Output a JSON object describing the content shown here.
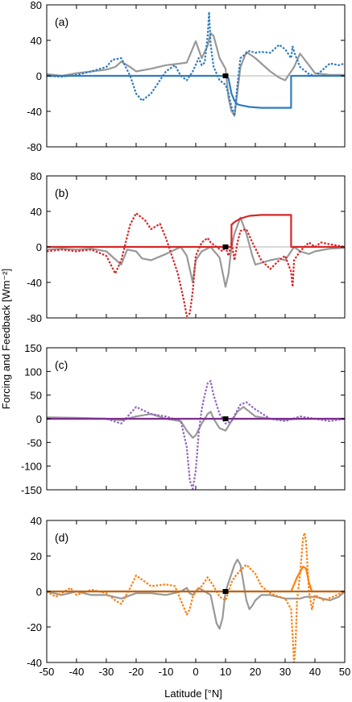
{
  "figure": {
    "ylabel": "Forcing and Feedback [Wm⁻²]",
    "xlabel": "Latitude [°N]",
    "x_ticks": [
      -50,
      -40,
      -30,
      -20,
      -10,
      0,
      10,
      20,
      30,
      40,
      50
    ]
  },
  "chart_data": [
    {
      "type": "line",
      "panel_label": "(a)",
      "xlim": [
        -50,
        50
      ],
      "ylim": [
        -80,
        80
      ],
      "y_ticks": [
        -80,
        -40,
        0,
        40,
        80
      ],
      "marker": {
        "x": 10,
        "y": 0
      },
      "series": [
        {
          "style": "solid",
          "color": "#999999",
          "x": [
            -50,
            -45,
            -40,
            -35,
            -30,
            -27,
            -25,
            -22,
            -20,
            -15,
            -10,
            -5,
            -3,
            0,
            2,
            4,
            5,
            6,
            8,
            10,
            11,
            12,
            12.5,
            13,
            15,
            17,
            20,
            25,
            28,
            30,
            33,
            35,
            38,
            40,
            45,
            50
          ],
          "y": [
            2,
            0,
            3,
            5,
            7,
            10,
            16,
            10,
            5,
            8,
            12,
            14,
            15,
            39,
            20,
            34,
            48,
            45,
            20,
            8,
            -25,
            -40,
            -42,
            -45,
            10,
            27,
            20,
            5,
            -2,
            -5,
            10,
            25,
            12,
            3,
            1,
            1
          ]
        },
        {
          "style": "dotted",
          "color": "#2f7cbf",
          "x": [
            -50,
            -45,
            -40,
            -35,
            -30,
            -28,
            -25,
            -22,
            -20,
            -18,
            -15,
            -12,
            -10,
            -7,
            -5,
            -3,
            -1,
            1,
            2,
            3,
            4,
            4.5,
            5,
            6,
            8,
            10,
            11,
            12,
            13,
            14,
            15,
            18,
            20,
            22,
            25,
            28,
            30,
            32,
            32.5,
            33,
            35,
            38,
            40,
            42,
            45,
            48,
            50
          ],
          "y": [
            0,
            -1,
            1,
            5,
            10,
            18,
            20,
            0,
            -20,
            -28,
            -20,
            -5,
            5,
            12,
            0,
            -5,
            5,
            20,
            12,
            15,
            45,
            72,
            35,
            10,
            -5,
            -10,
            -20,
            -35,
            -45,
            -10,
            20,
            28,
            26,
            27,
            26,
            35,
            30,
            20,
            33,
            27,
            10,
            2,
            0,
            5,
            14,
            12,
            14
          ]
        },
        {
          "style": "solid",
          "color": "#2f7cbf",
          "x": [
            -50,
            10,
            10,
            11,
            12,
            13,
            14,
            15,
            18,
            22,
            26,
            30,
            32,
            32,
            33,
            50
          ],
          "y": [
            0,
            0,
            0,
            -3,
            -20,
            -28,
            -32,
            -33,
            -35,
            -36,
            -36,
            -36,
            -36,
            0,
            0,
            0
          ]
        }
      ]
    },
    {
      "type": "line",
      "panel_label": "(b)",
      "xlim": [
        -50,
        50
      ],
      "ylim": [
        -80,
        80
      ],
      "y_ticks": [
        -80,
        -40,
        0,
        40,
        80
      ],
      "marker": {
        "x": 10,
        "y": 0
      },
      "series": [
        {
          "style": "solid",
          "color": "#999999",
          "x": [
            -50,
            -45,
            -40,
            -35,
            -30,
            -25,
            -23,
            -20,
            -18,
            -15,
            -10,
            -5,
            -3,
            -1,
            0,
            2,
            5,
            8,
            10,
            11,
            12,
            13,
            15,
            17,
            19,
            20,
            25,
            28,
            30,
            33,
            35,
            38,
            40,
            45,
            50
          ],
          "y": [
            -3,
            -2,
            -3,
            -2,
            -5,
            -20,
            -3,
            -5,
            -13,
            -15,
            -8,
            0,
            -10,
            -40,
            -15,
            -5,
            0,
            -12,
            -45,
            -30,
            0,
            15,
            33,
            15,
            -10,
            -20,
            -15,
            -13,
            -15,
            0,
            -5,
            -8,
            -5,
            -2,
            -1
          ]
        },
        {
          "style": "dotted",
          "color": "#d62728",
          "x": [
            -50,
            -45,
            -40,
            -35,
            -30,
            -27,
            -25,
            -22,
            -20,
            -17,
            -15,
            -12,
            -10,
            -8,
            -6,
            -4,
            -3,
            -2,
            -1,
            0,
            2,
            4,
            5,
            7,
            9,
            10,
            11,
            12,
            13,
            14,
            15,
            17,
            19,
            22,
            25,
            28,
            30,
            32,
            32.5,
            33,
            35,
            38,
            40,
            42,
            45,
            50
          ],
          "y": [
            -5,
            -3,
            -5,
            -3,
            -10,
            -30,
            -15,
            25,
            38,
            30,
            20,
            26,
            10,
            -10,
            -30,
            -60,
            -78,
            -75,
            -50,
            -10,
            5,
            10,
            5,
            0,
            -5,
            0,
            -10,
            5,
            -15,
            5,
            18,
            20,
            5,
            -15,
            -25,
            -15,
            -10,
            -28,
            -45,
            -15,
            -5,
            5,
            0,
            5,
            3,
            0
          ]
        },
        {
          "style": "solid",
          "color": "#d62728",
          "x": [
            -50,
            10,
            12,
            12,
            13,
            15,
            18,
            22,
            26,
            30,
            32,
            32,
            33,
            50
          ],
          "y": [
            0,
            0,
            0,
            25,
            28,
            32,
            35,
            36,
            36,
            36,
            36,
            0,
            0,
            0
          ]
        }
      ]
    },
    {
      "type": "line",
      "panel_label": "(c)",
      "xlim": [
        -50,
        50
      ],
      "ylim": [
        -150,
        150
      ],
      "y_ticks": [
        -150,
        -100,
        -50,
        0,
        50,
        100,
        150
      ],
      "marker": {
        "x": 10,
        "y": 0
      },
      "series": [
        {
          "style": "solid",
          "color": "#999999",
          "x": [
            -50,
            -40,
            -30,
            -25,
            -20,
            -15,
            -10,
            -5,
            -3,
            -1,
            0,
            2,
            3,
            4,
            5,
            6,
            8,
            10,
            12,
            14,
            16,
            18,
            20,
            25,
            30,
            35,
            40,
            45,
            50
          ],
          "y": [
            3,
            2,
            0,
            -3,
            5,
            10,
            0,
            -5,
            -25,
            -40,
            -35,
            -10,
            0,
            10,
            15,
            0,
            -20,
            -25,
            -5,
            15,
            25,
            15,
            5,
            0,
            -2,
            0,
            0,
            0,
            0
          ]
        },
        {
          "style": "dotted",
          "color": "#9467bd",
          "x": [
            -50,
            -40,
            -30,
            -25,
            -20,
            -15,
            -10,
            -5,
            -3,
            -2,
            -1,
            0,
            1,
            2,
            3,
            4,
            5,
            6,
            8,
            10,
            12,
            15,
            17,
            20,
            25,
            30,
            35,
            40,
            45,
            50
          ],
          "y": [
            0,
            0,
            0,
            -10,
            25,
            10,
            5,
            -5,
            -60,
            -130,
            -148,
            -110,
            -30,
            20,
            50,
            75,
            80,
            50,
            10,
            -10,
            -5,
            30,
            35,
            20,
            0,
            -5,
            5,
            0,
            -5,
            0
          ]
        },
        {
          "style": "solid",
          "color": "#7b2d8e",
          "x": [
            -50,
            50
          ],
          "y": [
            0,
            0
          ]
        }
      ]
    },
    {
      "type": "line",
      "panel_label": "(d)",
      "xlim": [
        -50,
        50
      ],
      "ylim": [
        -40,
        40
      ],
      "y_ticks": [
        -40,
        -20,
        0,
        20,
        40
      ],
      "marker": {
        "x": 10,
        "y": 0
      },
      "series": [
        {
          "style": "solid",
          "color": "#999999",
          "x": [
            -50,
            -45,
            -40,
            -35,
            -30,
            -25,
            -20,
            -15,
            -10,
            -5,
            -3,
            -2,
            -1,
            0,
            1,
            3,
            5,
            7,
            8,
            9,
            10,
            11,
            12,
            13,
            14,
            15,
            16,
            17,
            18,
            19,
            20,
            22,
            25,
            30,
            35,
            37,
            40,
            45,
            48,
            50
          ],
          "y": [
            0,
            -2,
            0,
            -2,
            -2,
            -4,
            -1,
            -1,
            -2,
            0,
            2,
            -1,
            -2,
            0,
            2,
            0,
            -2,
            -18,
            -21,
            -15,
            0,
            5,
            10,
            15,
            18,
            15,
            5,
            -5,
            -10,
            -8,
            -5,
            -2,
            -2,
            -4,
            -4,
            -3,
            -3,
            -5,
            -3,
            0
          ]
        },
        {
          "style": "dotted",
          "color": "#ff7f0e",
          "x": [
            -50,
            -47,
            -45,
            -42,
            -40,
            -35,
            -30,
            -27,
            -25,
            -22,
            -20,
            -15,
            -10,
            -7,
            -5,
            -3,
            -2,
            -1,
            0,
            2,
            4,
            6,
            8,
            10,
            11,
            12,
            13,
            14,
            15,
            17,
            20,
            22,
            25,
            28,
            30,
            32,
            33,
            33.5,
            34,
            35,
            36,
            36.5,
            37,
            38,
            39,
            40,
            43,
            46,
            50
          ],
          "y": [
            0,
            -3,
            -1,
            2,
            -2,
            1,
            -1,
            -5,
            -7,
            2,
            9,
            3,
            4,
            3,
            -5,
            -13,
            -10,
            -3,
            0,
            3,
            8,
            3,
            -3,
            -5,
            0,
            5,
            8,
            10,
            12,
            15,
            10,
            3,
            -1,
            -3,
            -4,
            -10,
            -40,
            -30,
            -5,
            10,
            30,
            33,
            28,
            0,
            -10,
            -2,
            -5,
            -3,
            0
          ]
        },
        {
          "style": "solid",
          "color": "#ff7f0e",
          "x": [
            -50,
            30,
            32,
            33,
            34,
            35,
            36,
            37,
            38,
            39,
            40,
            45,
            50
          ],
          "y": [
            0,
            0,
            0,
            4,
            8,
            11,
            14,
            13,
            5,
            0,
            0,
            0,
            0
          ]
        },
        {
          "style": "solid",
          "color": "#b8691e",
          "x": [
            -50,
            50
          ],
          "y": [
            0,
            0
          ]
        }
      ]
    }
  ]
}
